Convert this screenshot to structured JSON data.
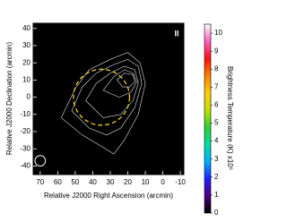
{
  "chart_data": {
    "type": "image",
    "marker_label": "II",
    "xlabel": "Relative J2000 Right Ascension (arcmin)",
    "ylabel": "Relative J2000 Declination (arcmin)",
    "colorbar_label": "Brightness Temperature (K) x10⁶",
    "xlim": [
      74,
      -12
    ],
    "xticks": [
      70,
      60,
      50,
      40,
      30,
      20,
      10,
      0,
      -10
    ],
    "ylim": [
      -45,
      43
    ],
    "yticks": [
      40,
      30,
      20,
      10,
      0,
      -10,
      -20,
      -30,
      -40
    ],
    "clim": [
      0,
      10.5
    ],
    "cticks": [
      0,
      1,
      2,
      3,
      4,
      5,
      6,
      7,
      8,
      9,
      10
    ],
    "colormap": [
      "#000000",
      "#4b0082",
      "#2020ff",
      "#00b0ff",
      "#00e0a0",
      "#30d030",
      "#c0e000",
      "#ffd000",
      "#ff8000",
      "#ff1010",
      "#ff60c0",
      "#ffffff"
    ],
    "background": "#000000",
    "source": {
      "x": 20,
      "y": 10,
      "r": 4,
      "peak": 10
    },
    "disk": {
      "x": 35,
      "y": 0,
      "r": 16,
      "color": "#e8d020"
    },
    "beam": {
      "x": 70,
      "y": -37,
      "r": 3,
      "color": "#ffffff"
    },
    "contour_color": "#e0e0e0",
    "contours": [
      {
        "x": [
          58,
          50,
          42,
          30,
          20,
          13,
          10,
          14,
          22,
          28,
          36,
          46
        ],
        "y": [
          -12,
          5,
          16,
          22,
          26,
          20,
          8,
          -10,
          -25,
          -33,
          -28,
          -22
        ]
      },
      {
        "x": [
          52,
          46,
          38,
          28,
          20,
          14,
          12,
          16,
          24,
          32,
          42
        ],
        "y": [
          -8,
          6,
          14,
          19,
          22,
          18,
          8,
          -6,
          -18,
          -22,
          -18
        ]
      },
      {
        "x": [
          44,
          38,
          30,
          22,
          16,
          14,
          17,
          24,
          34
        ],
        "y": [
          -2,
          8,
          14,
          18,
          16,
          8,
          -2,
          -10,
          -12
        ]
      },
      {
        "x": [
          34,
          28,
          22,
          17,
          15,
          18,
          25
        ],
        "y": [
          4,
          12,
          16,
          14,
          9,
          3,
          0
        ]
      },
      {
        "x": [
          26,
          22,
          17,
          16,
          19,
          23
        ],
        "y": [
          10,
          14,
          13,
          9,
          6,
          6
        ]
      }
    ]
  }
}
